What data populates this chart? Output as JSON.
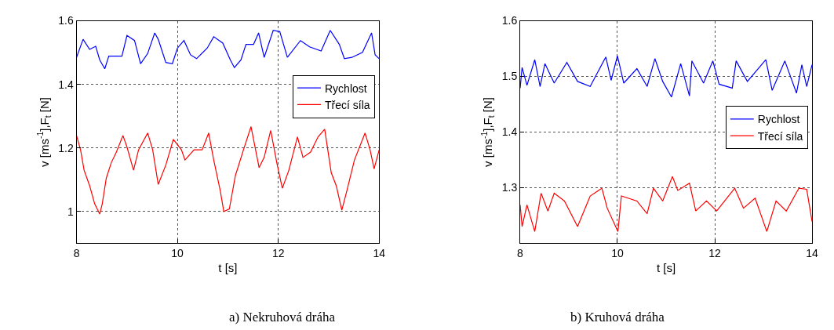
{
  "chart_data": [
    {
      "type": "line",
      "xlabel": "t [s]",
      "ylabel": "v [ms$^{-1}$],F$_{t}$ [N]",
      "annotations": [
        "a) Nekruhová dráha"
      ],
      "xlim": [
        8,
        14
      ],
      "xticks": [
        8,
        10,
        12,
        14
      ],
      "ylim": [
        0.9,
        1.6
      ],
      "yticks": [
        1,
        1.2,
        1.4,
        1.6
      ],
      "grid": true,
      "legend": "top right",
      "line_style": "solid",
      "marker": "none",
      "series": [
        {
          "name": "Rychlost",
          "color": "#0000ff",
          "x": [
            8.0,
            8.13,
            8.26,
            8.38,
            8.46,
            8.56,
            8.64,
            8.9,
            9.0,
            9.15,
            9.27,
            9.41,
            9.55,
            9.62,
            9.77,
            9.9,
            10.0,
            10.13,
            10.26,
            10.38,
            10.59,
            10.72,
            10.9,
            11.05,
            11.13,
            11.26,
            11.36,
            11.51,
            11.61,
            11.72,
            11.9,
            12.03,
            12.18,
            12.44,
            12.62,
            12.85,
            13.03,
            13.21,
            13.31,
            13.46,
            13.67,
            13.85,
            13.92,
            14.0
          ],
          "values": [
            1.485,
            1.542,
            1.51,
            1.52,
            1.477,
            1.449,
            1.489,
            1.489,
            1.554,
            1.538,
            1.465,
            1.497,
            1.562,
            1.542,
            1.469,
            1.465,
            1.514,
            1.538,
            1.493,
            1.481,
            1.514,
            1.55,
            1.53,
            1.477,
            1.453,
            1.477,
            1.526,
            1.526,
            1.562,
            1.485,
            1.57,
            1.566,
            1.485,
            1.538,
            1.518,
            1.505,
            1.57,
            1.526,
            1.481,
            1.485,
            1.501,
            1.562,
            1.493,
            1.481
          ]
        },
        {
          "name": "Třecí síla",
          "color": "#ff0000",
          "x": [
            8.0,
            8.08,
            8.15,
            8.26,
            8.36,
            8.46,
            8.51,
            8.59,
            8.69,
            8.79,
            8.92,
            9.0,
            9.13,
            9.23,
            9.41,
            9.51,
            9.62,
            9.77,
            9.92,
            10.08,
            10.15,
            10.33,
            10.49,
            10.62,
            10.72,
            10.85,
            10.92,
            11.03,
            11.15,
            11.31,
            11.46,
            11.62,
            11.72,
            11.85,
            11.97,
            12.08,
            12.21,
            12.38,
            12.49,
            12.64,
            12.79,
            12.92,
            13.05,
            13.15,
            13.26,
            13.36,
            13.51,
            13.72,
            13.82,
            13.9,
            14.0
          ],
          "values": [
            1.239,
            1.194,
            1.13,
            1.081,
            1.024,
            0.992,
            1.024,
            1.105,
            1.154,
            1.187,
            1.239,
            1.203,
            1.13,
            1.194,
            1.247,
            1.194,
            1.085,
            1.146,
            1.227,
            1.194,
            1.162,
            1.194,
            1.194,
            1.247,
            1.162,
            1.065,
            1.0,
            1.008,
            1.113,
            1.194,
            1.267,
            1.138,
            1.17,
            1.255,
            1.154,
            1.073,
            1.13,
            1.235,
            1.17,
            1.187,
            1.235,
            1.259,
            1.122,
            1.081,
            1.004,
            1.065,
            1.162,
            1.247,
            1.194,
            1.134,
            1.194
          ]
        }
      ]
    },
    {
      "type": "line",
      "xlabel": "t [s]",
      "ylabel": "v [ms$^{-1}$],F$_{t}$ [N]",
      "annotations": [
        "b) Kruhová dráha"
      ],
      "xlim": [
        8,
        14
      ],
      "xticks": [
        8,
        10,
        12,
        14
      ],
      "ylim": [
        1.2,
        1.6
      ],
      "yticks": [
        1.3,
        1.4,
        1.5,
        1.6
      ],
      "grid": true,
      "legend": "right",
      "line_style": "solid",
      "marker": "none",
      "series": [
        {
          "name": "Rychlost",
          "color": "#0000ff",
          "x": [
            8.0,
            8.04,
            8.14,
            8.3,
            8.41,
            8.51,
            8.7,
            8.96,
            9.18,
            9.44,
            9.76,
            9.87,
            10.0,
            10.13,
            10.4,
            10.61,
            10.77,
            10.93,
            11.11,
            11.3,
            11.48,
            11.53,
            11.77,
            11.96,
            12.09,
            12.36,
            12.44,
            12.67,
            13.05,
            13.18,
            13.44,
            13.68,
            13.79,
            13.89,
            14.0
          ],
          "values": [
            1.479,
            1.516,
            1.484,
            1.53,
            1.482,
            1.523,
            1.488,
            1.525,
            1.491,
            1.482,
            1.535,
            1.493,
            1.537,
            1.488,
            1.514,
            1.482,
            1.532,
            1.491,
            1.463,
            1.523,
            1.465,
            1.528,
            1.488,
            1.528,
            1.486,
            1.479,
            1.528,
            1.491,
            1.53,
            1.475,
            1.528,
            1.47,
            1.521,
            1.482,
            1.521
          ]
        },
        {
          "name": "Třecí síla",
          "color": "#ff0000",
          "x": [
            8.0,
            8.04,
            8.14,
            8.3,
            8.43,
            8.57,
            8.7,
            8.91,
            9.18,
            9.44,
            9.68,
            9.79,
            10.01,
            10.08,
            10.4,
            10.61,
            10.74,
            10.93,
            11.13,
            11.24,
            11.48,
            11.61,
            11.83,
            12.04,
            12.41,
            12.59,
            12.83,
            13.07,
            13.26,
            13.47,
            13.73,
            13.89,
            14.0
          ],
          "values": [
            1.269,
            1.23,
            1.269,
            1.221,
            1.29,
            1.258,
            1.29,
            1.276,
            1.23,
            1.285,
            1.299,
            1.263,
            1.221,
            1.285,
            1.276,
            1.253,
            1.299,
            1.276,
            1.32,
            1.295,
            1.308,
            1.258,
            1.276,
            1.258,
            1.299,
            1.263,
            1.281,
            1.221,
            1.276,
            1.258,
            1.299,
            1.297,
            1.239
          ]
        }
      ]
    }
  ]
}
